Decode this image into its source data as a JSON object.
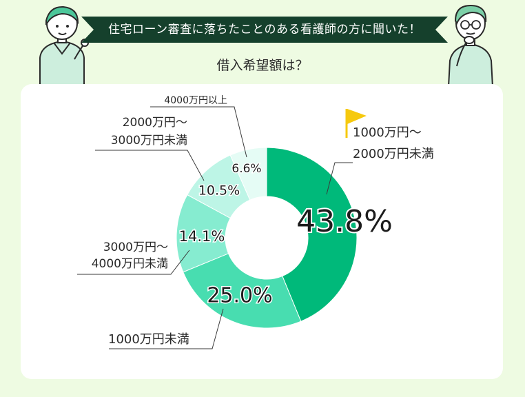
{
  "header": {
    "banner": "住宅ローン審査に落ちたことのある看護師の方に聞いた！",
    "question": "借入希望額は？"
  },
  "colors": {
    "banner_bg": "#15402c",
    "page_bg": "#eefbe2",
    "flag": "#f6c90e"
  },
  "icons": {
    "left_character": "nurse-pointing-icon",
    "right_character": "man-thinking-icon",
    "flag": "flag-icon"
  },
  "chart_data": {
    "type": "pie",
    "donut": true,
    "title": "借入希望額は？",
    "slices": [
      {
        "label_lines": [
          "1000万円〜",
          "2000万円未満"
        ],
        "value": 43.8,
        "value_label": "43.8%",
        "color": "#00b97a",
        "highlight": true
      },
      {
        "label_lines": [
          "1000万円未満"
        ],
        "value": 25.0,
        "value_label": "25.0%",
        "color": "#48ddb0"
      },
      {
        "label_lines": [
          "3000万円〜",
          "4000万円未満"
        ],
        "value": 14.1,
        "value_label": "14.1%",
        "color": "#86ecd0"
      },
      {
        "label_lines": [
          "2000万円〜",
          "3000万円未満"
        ],
        "value": 10.5,
        "value_label": "10.5%",
        "color": "#bdf5e6"
      },
      {
        "label_lines": [
          "4000万円以上"
        ],
        "value": 6.6,
        "value_label": "6.6%",
        "color": "#e5fcf5"
      }
    ]
  }
}
